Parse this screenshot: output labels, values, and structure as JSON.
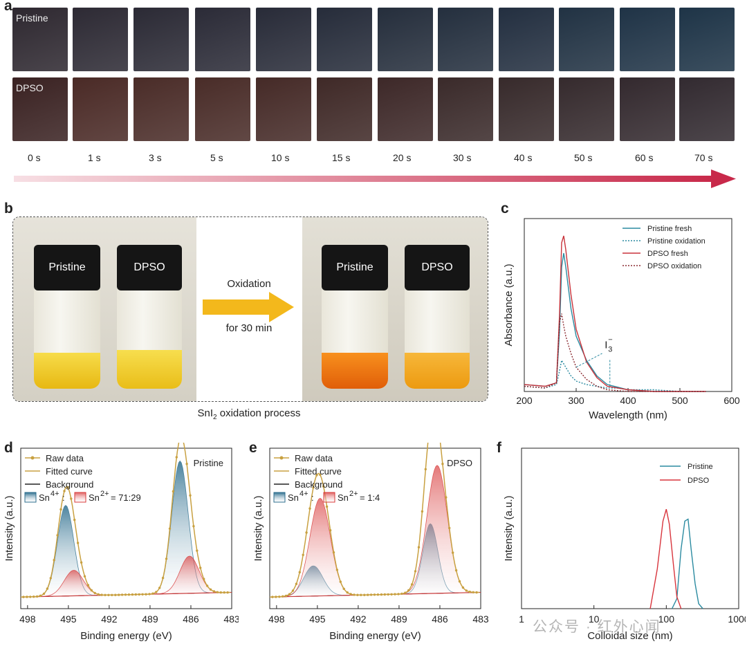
{
  "panel_a": {
    "label": "a",
    "row1_label": "Pristine",
    "row2_label": "DPSO",
    "times": [
      "0 s",
      "1 s",
      "3 s",
      "5 s",
      "10 s",
      "15 s",
      "20 s",
      "30 s",
      "40 s",
      "50 s",
      "60 s",
      "70 s"
    ],
    "row1_colors": [
      "#2e2830",
      "#2d2a34",
      "#2b2a35",
      "#2b2b37",
      "#282b38",
      "#262c3a",
      "#252e3c",
      "#242f3e",
      "#232f40",
      "#213243",
      "#1f3346",
      "#1e3447"
    ],
    "row2_colors": [
      "#3a2222",
      "#4a2a26",
      "#4a2c28",
      "#492c28",
      "#452a27",
      "#3f2927",
      "#3d2828",
      "#3a2a2a",
      "#372a2b",
      "#352a2d",
      "#33292e",
      "#322a30"
    ],
    "arrow_color": "#c8294a"
  },
  "panel_b": {
    "label": "b",
    "vial1": "Pristine",
    "vial2": "DPSO",
    "vial3": "Pristine",
    "vial4": "DPSO",
    "arrow_text1": "Oxidation",
    "arrow_text2": "for 30 min",
    "caption_pre": "SnI",
    "caption_sub": "2",
    "caption_post": " oxidation process",
    "colors": {
      "yellow": "#f2c21c",
      "orange": "#f07a10",
      "amber": "#f3a81c"
    }
  },
  "panel_c": {
    "label": "c",
    "annotation": "I",
    "annotation_sub": "3",
    "annotation_sup": "−",
    "chart_data": {
      "type": "line",
      "xlabel": "Wavelength (nm)",
      "ylabel": "Absorbance (a.u.)",
      "xlim": [
        200,
        600
      ],
      "xticks": [
        "200",
        "300",
        "400",
        "500",
        "600"
      ],
      "legend_position": "top-right",
      "series": [
        {
          "name": "Pristine fresh",
          "color": "#2a8aa0",
          "style": "solid",
          "x": [
            200,
            240,
            262,
            268,
            272,
            276,
            280,
            290,
            300,
            320,
            340,
            360,
            400,
            450,
            500,
            550
          ],
          "y": [
            0.04,
            0.03,
            0.05,
            0.35,
            0.72,
            0.8,
            0.72,
            0.48,
            0.32,
            0.18,
            0.09,
            0.04,
            0.01,
            0.0,
            0.0,
            0.0
          ]
        },
        {
          "name": "Pristine oxidation",
          "color": "#2a8aa0",
          "style": "dotted",
          "x": [
            200,
            240,
            262,
            268,
            272,
            280,
            290,
            300,
            320,
            340,
            360,
            380,
            400,
            450,
            500,
            550
          ],
          "y": [
            0.03,
            0.02,
            0.04,
            0.12,
            0.18,
            0.14,
            0.09,
            0.06,
            0.04,
            0.03,
            0.02,
            0.02,
            0.01,
            0.01,
            0.0,
            0.0
          ]
        },
        {
          "name": "DPSO fresh",
          "color": "#c8323a",
          "style": "solid",
          "x": [
            200,
            240,
            262,
            268,
            272,
            276,
            280,
            290,
            300,
            320,
            340,
            360,
            400,
            450,
            500,
            550
          ],
          "y": [
            0.04,
            0.03,
            0.05,
            0.45,
            0.86,
            0.9,
            0.82,
            0.56,
            0.36,
            0.17,
            0.08,
            0.03,
            0.01,
            0.0,
            0.0,
            0.0
          ]
        },
        {
          "name": "DPSO oxidation",
          "color": "#8a2a30",
          "style": "dotted",
          "x": [
            200,
            240,
            262,
            268,
            272,
            276,
            280,
            290,
            300,
            320,
            340,
            360,
            400,
            450,
            500,
            550
          ],
          "y": [
            0.03,
            0.02,
            0.05,
            0.4,
            0.45,
            0.38,
            0.32,
            0.22,
            0.14,
            0.07,
            0.03,
            0.01,
            0.0,
            0.0,
            0.0,
            0.0
          ]
        }
      ]
    }
  },
  "panel_d": {
    "label": "d",
    "sample": "Pristine",
    "leg_raw": "Raw data",
    "leg_fit": "Fitted curve",
    "leg_bg": "Background",
    "leg_ratio_a": "Sn",
    "leg_ratio_a_sup": "4+",
    "leg_ratio_sep": " :",
    "leg_ratio_b": "Sn",
    "leg_ratio_b_sup": "2+",
    "leg_ratio_val": " = 71:29",
    "chart_data": {
      "type": "line",
      "xlabel": "Binding energy (eV)",
      "ylabel": "Intensity (a.u.)",
      "xlim": [
        498.5,
        483
      ],
      "xticks": [
        "498",
        "495",
        "492",
        "489",
        "486",
        "483"
      ],
      "sn4_color": "#2c6e8e",
      "sn2_color": "#d83a3a",
      "peaks": [
        {
          "species": "Sn4+",
          "center": 495.2,
          "height": 0.39,
          "width": 0.6
        },
        {
          "species": "Sn2+",
          "center": 494.6,
          "height": 0.11,
          "width": 0.7
        },
        {
          "species": "Sn4+",
          "center": 486.8,
          "height": 0.57,
          "width": 0.6
        },
        {
          "species": "Sn2+",
          "center": 486.1,
          "height": 0.16,
          "width": 0.7
        }
      ]
    }
  },
  "panel_e": {
    "label": "e",
    "sample": "DPSO",
    "leg_raw": "Raw data",
    "leg_fit": "Fitted curve",
    "leg_bg": "Background",
    "leg_ratio_a": "Sn",
    "leg_ratio_a_sup": "4+",
    "leg_ratio_sep": " :",
    "leg_ratio_b": "Sn",
    "leg_ratio_b_sup": "2+",
    "leg_ratio_val": " = 1:4",
    "chart_data": {
      "type": "line",
      "xlabel": "Binding energy (eV)",
      "ylabel": "Intensity (a.u.)",
      "xlim": [
        498.5,
        483
      ],
      "xticks": [
        "498",
        "495",
        "492",
        "489",
        "486",
        "483"
      ],
      "sn4_color": "#2c6e8e",
      "sn2_color": "#d83a3a",
      "peaks": [
        {
          "species": "Sn4+",
          "center": 495.3,
          "height": 0.13,
          "width": 0.7
        },
        {
          "species": "Sn2+",
          "center": 494.8,
          "height": 0.42,
          "width": 0.75
        },
        {
          "species": "Sn4+",
          "center": 486.7,
          "height": 0.3,
          "width": 0.55
        },
        {
          "species": "Sn2+",
          "center": 486.2,
          "height": 0.55,
          "width": 0.75
        }
      ]
    }
  },
  "panel_f": {
    "label": "f",
    "chart_data": {
      "type": "line",
      "xlabel": "Colloidal size (nm)",
      "ylabel": "Intensity (a.u.)",
      "xscale": "log",
      "xlim": [
        1,
        1000
      ],
      "xticks": [
        "1",
        "10",
        "100",
        "1000"
      ],
      "legend_position": "top-right",
      "series": [
        {
          "name": "Pristine",
          "color": "#2a8aa0",
          "x": [
            120,
            140,
            160,
            180,
            200,
            220,
            250,
            280,
            320
          ],
          "y": [
            0.0,
            0.1,
            0.6,
            0.88,
            0.9,
            0.6,
            0.25,
            0.05,
            0.0
          ]
        },
        {
          "name": "DPSO",
          "color": "#d8343c",
          "x": [
            60,
            75,
            90,
            100,
            110,
            125,
            140,
            160
          ],
          "y": [
            0.0,
            0.4,
            0.88,
            1.0,
            0.85,
            0.45,
            0.12,
            0.0
          ]
        }
      ]
    }
  },
  "watermark": "公众号 · 红外心闻"
}
